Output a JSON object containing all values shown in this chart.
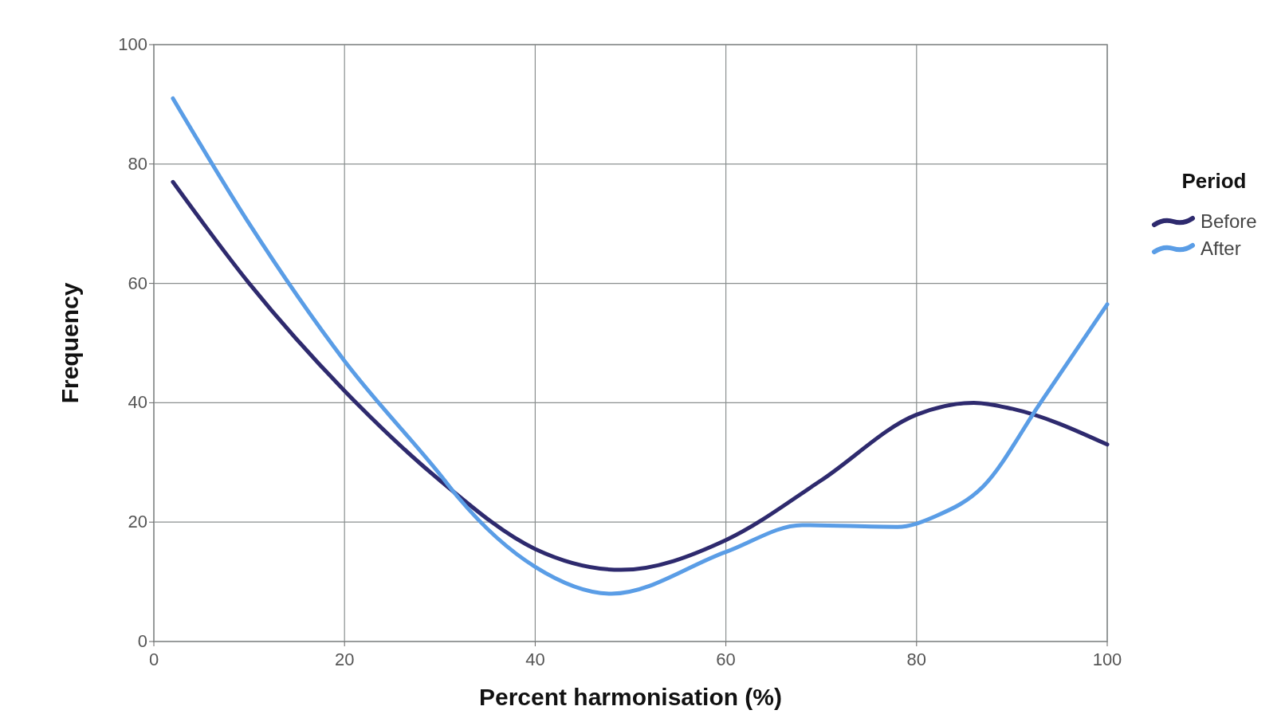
{
  "chart_data": {
    "type": "line",
    "xlabel": "Percent harmonisation (%)",
    "ylabel": "Frequency",
    "legend_title": "Period",
    "legend": "right",
    "grid": true,
    "marker": "none",
    "line_style": "solid",
    "xlim": [
      0,
      100
    ],
    "xticks": [
      0,
      20,
      40,
      60,
      80,
      100
    ],
    "ylim": [
      0,
      100
    ],
    "yticks": [
      0,
      20,
      40,
      60,
      80,
      100
    ],
    "series": [
      {
        "name": "Before",
        "color": "#2e2a6e",
        "x": [
          2,
          10,
          20,
          30,
          40,
          49,
          60,
          70,
          80,
          86,
          90,
          100
        ],
        "values": [
          77,
          60,
          42,
          27,
          15.5,
          12,
          17,
          27,
          38,
          40,
          39,
          33
        ]
      },
      {
        "name": "After",
        "color": "#5a9de6",
        "x": [
          2,
          10,
          20,
          30,
          32,
          40,
          48,
          60,
          68,
          78,
          82,
          87,
          93,
          100
        ],
        "values": [
          91,
          70,
          47,
          28,
          24,
          12.5,
          8,
          15,
          19.5,
          19.2,
          21,
          26,
          40,
          56.5
        ]
      }
    ]
  }
}
